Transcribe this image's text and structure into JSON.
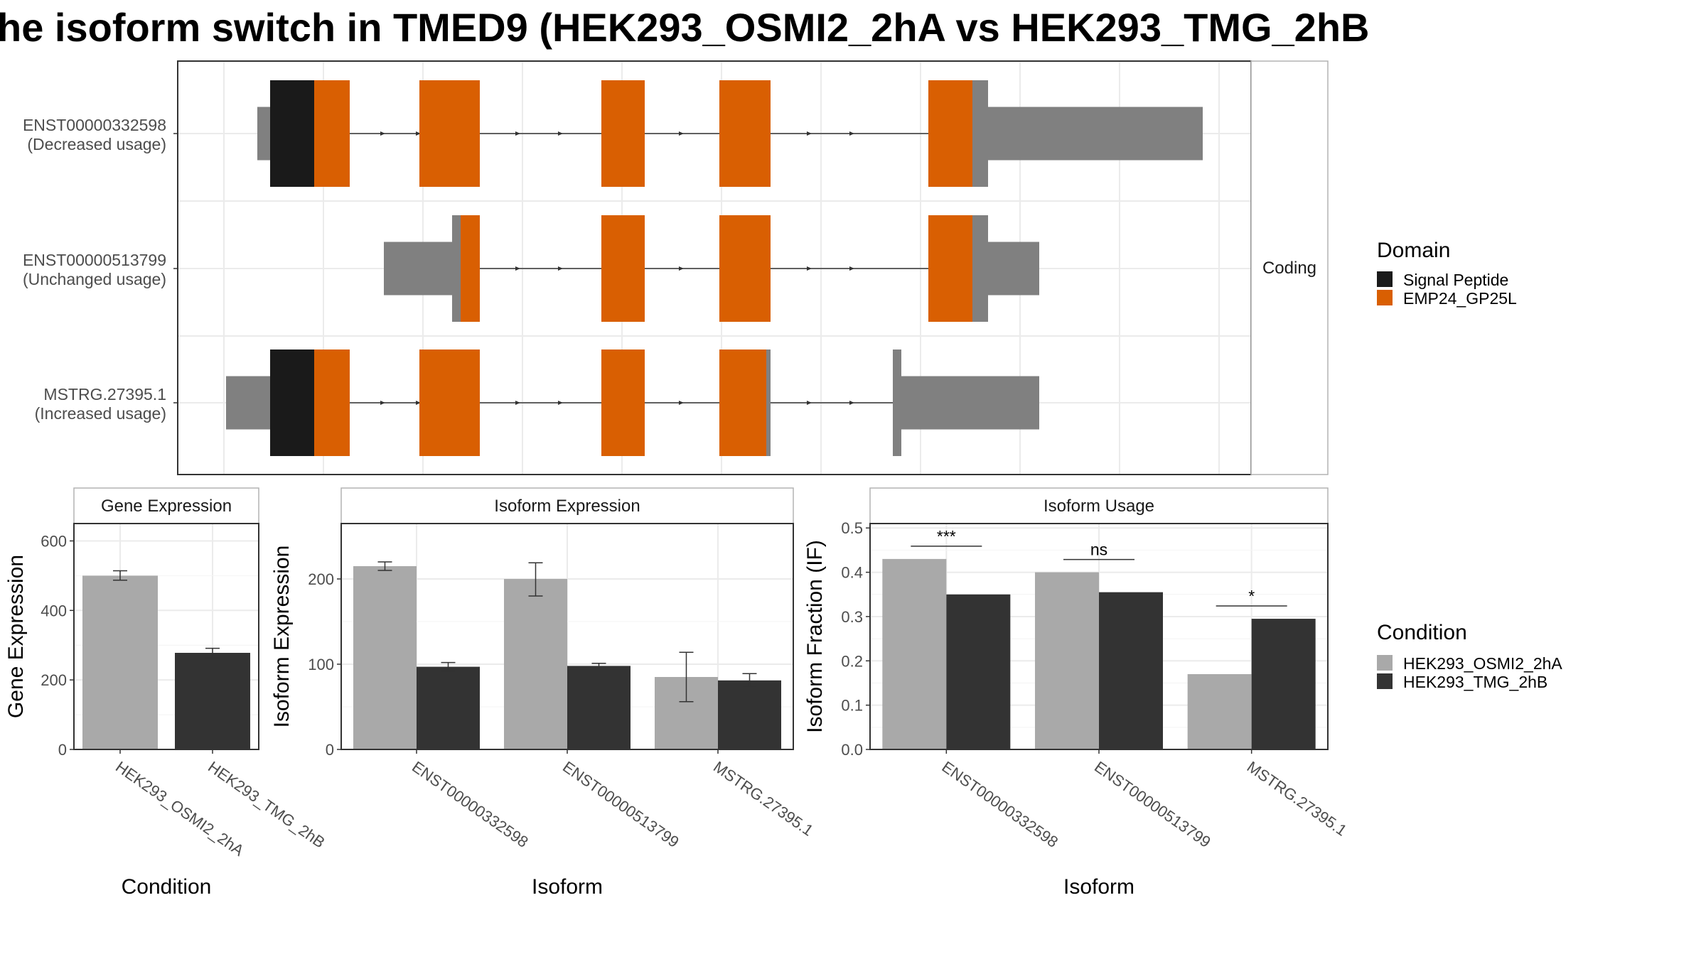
{
  "title": "he isoform switch in TMED9 (HEK293_OSMI2_2hA vs HEK293_TMG_2hB",
  "colors": {
    "utr": "#808080",
    "signal_peptide": "#1a1a1a",
    "emp24": "#d95f02",
    "cond_a": "#a9a9a9",
    "cond_b": "#333333",
    "grid": "#ebebeb",
    "panel_border": "#333333",
    "strip_border": "#b3b3b3"
  },
  "chart_data": [
    {
      "type": "gene-structure",
      "strip_label": "Coding",
      "isoforms": [
        {
          "id": "ENST00000332598",
          "status": "(Decreased usage)"
        },
        {
          "id": "ENST00000513799",
          "status": "(Unchanged usage)"
        },
        {
          "id": "MSTRG.27395.1",
          "status": "(Increased usage)"
        }
      ],
      "legend": {
        "title": "Domain",
        "items": [
          {
            "label": "Signal Peptide",
            "color": "#1a1a1a"
          },
          {
            "label": "EMP24_GP25L",
            "color": "#d95f02"
          }
        ]
      }
    },
    {
      "type": "bar",
      "strip": "Gene Expression",
      "xlabel": "Condition",
      "ylabel": "Gene Expression",
      "categories": [
        "HEK293_OSMI2_2hA",
        "HEK293_TMG_2hB"
      ],
      "values": [
        500,
        278
      ],
      "errors": [
        [
          487,
          514
        ],
        [
          264,
          291
        ]
      ],
      "ylim": [
        0,
        650
      ],
      "yticks": [
        0,
        200,
        400,
        600
      ]
    },
    {
      "type": "bar",
      "strip": "Isoform Expression",
      "xlabel": "Isoform",
      "ylabel": "Isoform Expression",
      "categories": [
        "ENST00000332598",
        "ENST00000513799",
        "MSTRG.27395.1"
      ],
      "series": [
        {
          "name": "HEK293_OSMI2_2hA",
          "values": [
            215,
            200,
            85
          ],
          "errors": [
            [
              210,
              220
            ],
            [
              180,
              219
            ],
            [
              56,
              114
            ]
          ]
        },
        {
          "name": "HEK293_TMG_2hB",
          "values": [
            97,
            98,
            81
          ],
          "errors": [
            [
              92,
              102
            ],
            [
              95,
              101
            ],
            [
              73,
              89
            ]
          ]
        }
      ],
      "ylim": [
        0,
        265
      ],
      "yticks": [
        0,
        100,
        200
      ]
    },
    {
      "type": "bar",
      "strip": "Isoform Usage",
      "xlabel": "Isoform",
      "ylabel": "Isoform Fraction (IF)",
      "categories": [
        "ENST00000332598",
        "ENST00000513799",
        "MSTRG.27395.1"
      ],
      "series": [
        {
          "name": "HEK293_OSMI2_2hA",
          "values": [
            0.43,
            0.4,
            0.17
          ]
        },
        {
          "name": "HEK293_TMG_2hB",
          "values": [
            0.35,
            0.355,
            0.295
          ]
        }
      ],
      "significance": [
        "***",
        "ns",
        "*"
      ],
      "ylim": [
        0,
        0.51
      ],
      "yticks": [
        "0.0",
        "0.1",
        "0.2",
        "0.3",
        "0.4",
        "0.5"
      ]
    }
  ],
  "legend_condition": {
    "title": "Condition",
    "items": [
      {
        "label": "HEK293_OSMI2_2hA",
        "color": "#a9a9a9"
      },
      {
        "label": "HEK293_TMG_2hB",
        "color": "#333333"
      }
    ]
  }
}
